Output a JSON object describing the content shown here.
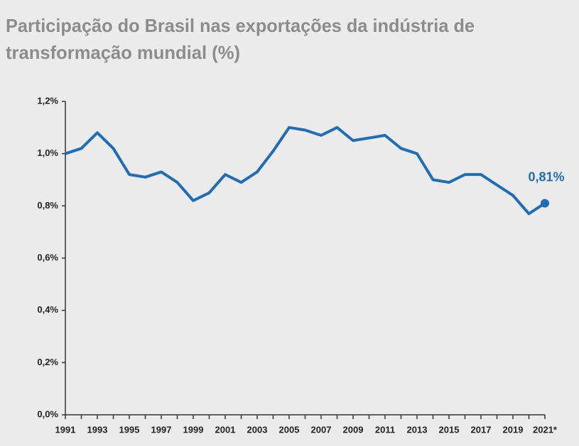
{
  "chart_data": {
    "type": "line",
    "title": [
      "Participação do Brasil nas exportações da indústria de",
      "transformação mundial (%)"
    ],
    "categories": [
      "1991",
      null,
      "1993",
      null,
      "1995",
      null,
      "1997",
      null,
      "1999",
      null,
      "2001",
      null,
      "2003",
      null,
      "2005",
      null,
      "2007",
      null,
      "2009",
      null,
      "2011",
      null,
      "2013",
      null,
      "2015",
      null,
      "2017",
      null,
      "2019",
      null,
      "2021*"
    ],
    "series": [
      {
        "color": "#1f6db4",
        "values": [
          1.0,
          1.02,
          1.08,
          1.02,
          0.92,
          0.91,
          0.93,
          0.89,
          0.82,
          0.85,
          0.92,
          0.89,
          0.93,
          1.01,
          1.1,
          1.09,
          1.07,
          1.1,
          1.05,
          1.06,
          1.07,
          1.02,
          1.0,
          0.9,
          0.89,
          0.92,
          0.92,
          0.88,
          0.84,
          0.77,
          0.81
        ],
        "value_labels": [
          null,
          null,
          null,
          null,
          null,
          null,
          null,
          null,
          null,
          null,
          null,
          null,
          null,
          null,
          null,
          null,
          null,
          null,
          null,
          null,
          null,
          null,
          null,
          null,
          null,
          null,
          null,
          null,
          null,
          null,
          "0,81%"
        ]
      }
    ],
    "ylim": [
      0,
      1.2
    ],
    "yticks": [
      {
        "value": 0,
        "label": "0,0%"
      },
      {
        "value": 0.2,
        "label": "0,2%"
      },
      {
        "value": 0.4,
        "label": "0,4%"
      },
      {
        "value": 0.6,
        "label": "0,6%"
      },
      {
        "value": 0.8,
        "label": "0,8%"
      },
      {
        "value": 1.0,
        "label": "1,0%"
      },
      {
        "value": 1.2,
        "label": "1,2%"
      }
    ]
  }
}
